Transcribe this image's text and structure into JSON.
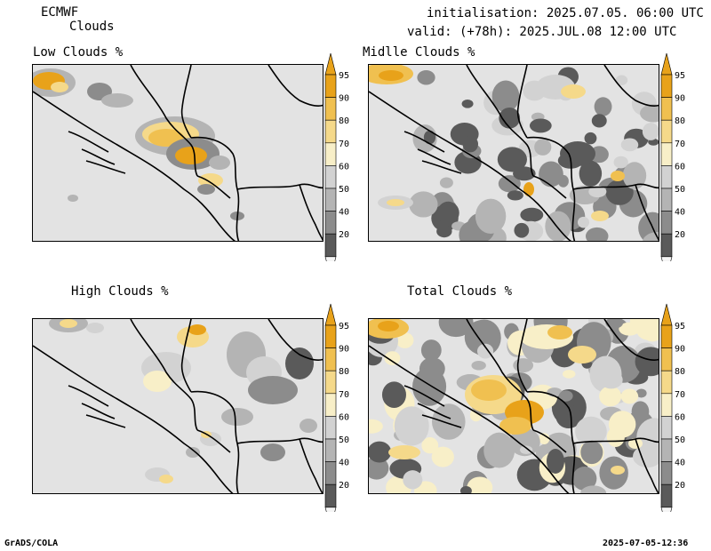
{
  "header": {
    "model": "ECMWF",
    "product": "Clouds",
    "init": "initialisation: 2025.07.05. 06:00 UTC",
    "valid": "valid: (+78h): 2025.JUL.08 12:00 UTC"
  },
  "panels": [
    {
      "id": "low",
      "title": "Low Clouds %"
    },
    {
      "id": "mid",
      "title": "Midlle Clouds %"
    },
    {
      "id": "high",
      "title": "High Clouds %"
    },
    {
      "id": "total",
      "title": "Total Clouds %"
    }
  ],
  "colorbar": {
    "levels": [
      "95",
      "90",
      "80",
      "70",
      "60",
      "50",
      "40",
      "20"
    ],
    "colors": {
      "gt95": "#e8a21a",
      "90_95": "#f0c050",
      "80_90": "#f5d98a",
      "70_80": "#f8efc8",
      "60_70": "#d2d2d2",
      "50_60": "#b4b4b4",
      "40_50": "#8c8c8c",
      "20_40": "#5a5a5a",
      "lt20": "#f5f5f5"
    }
  },
  "footer": {
    "left": "GrADS/COLA",
    "right": "2025-07-05-12:36"
  }
}
